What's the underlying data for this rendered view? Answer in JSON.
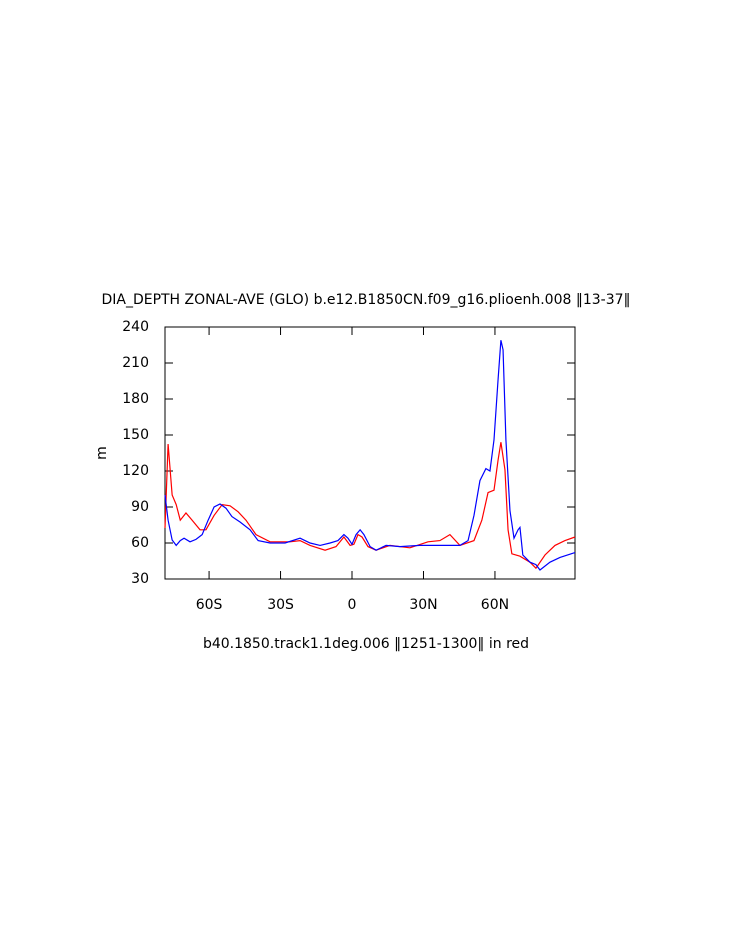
{
  "chart_data": {
    "type": "line",
    "title": "DIA_DEPTH ZONAL-AVE (GLO) b.e12.B1850CN.f09_g16.plioenh.008 ‖13-37‖",
    "subtitle": "b40.1850.track1.1deg.006 ‖1251-1300‖ in red",
    "ylabel": "m",
    "xlim": [
      -78.5,
      93.6
    ],
    "ylim": [
      30,
      240
    ],
    "xticks": [
      {
        "value": -60,
        "label": "60S"
      },
      {
        "value": -30,
        "label": "30S"
      },
      0,
      {
        "value": 30,
        "label": "30N"
      },
      {
        "value": 60,
        "label": "60N"
      }
    ],
    "yticks": [
      30,
      60,
      90,
      120,
      150,
      180,
      210,
      240
    ],
    "series": [
      {
        "color": "#0000ff",
        "x": [
          -78.5,
          -77.2,
          -75.5,
          -73.8,
          -72.1,
          -70.5,
          -68,
          -65.5,
          -62.9,
          -60.4,
          -57.9,
          -55.4,
          -52.9,
          -50.4,
          -47,
          -42.8,
          -39.4,
          -34.4,
          -28.1,
          -21.8,
          -17.6,
          -13.4,
          -9.2,
          -5.9,
          -3.4,
          -1.7,
          0,
          1.7,
          3.4,
          5,
          7.6,
          10.1,
          14.3,
          20.1,
          28.5,
          36.9,
          45.3,
          48.7,
          51.2,
          53.7,
          56.2,
          57.9,
          59.6,
          61.3,
          62.5,
          63.4,
          64.6,
          66.3,
          68,
          69.7,
          70.5,
          71.7,
          74.7,
          77.2,
          78.9,
          83.1,
          87.3,
          93.6
        ],
        "values": [
          100,
          79,
          62.5,
          58,
          62,
          64,
          61,
          63,
          67,
          79,
          90,
          92.5,
          89,
          82,
          77.5,
          71,
          62,
          60,
          60,
          64,
          60,
          58,
          60,
          62,
          67,
          64,
          59,
          67,
          71,
          67,
          57,
          54,
          58,
          57,
          58,
          58,
          58,
          62,
          83,
          112,
          122,
          120,
          146,
          196,
          229,
          221,
          146,
          87,
          64,
          71,
          73,
          50,
          44,
          42,
          37.5,
          44,
          48,
          52
        ]
      },
      {
        "color": "#ff0000",
        "x": [
          -78.5,
          -77.2,
          -75.5,
          -73.8,
          -72.1,
          -69.7,
          -67.1,
          -63.8,
          -61.3,
          -57.9,
          -54.5,
          -51.2,
          -47.8,
          -44.5,
          -40.3,
          -34.4,
          -26,
          -21.8,
          -17.6,
          -11.3,
          -6.7,
          -3.4,
          -0.8,
          0.8,
          2.5,
          4.2,
          6.7,
          10.1,
          15.9,
          24.3,
          31.9,
          36.9,
          41.1,
          45.3,
          51.2,
          54.5,
          57.1,
          59.6,
          61.3,
          62.5,
          64.2,
          65.5,
          67.1,
          70.5,
          74.7,
          77.2,
          81,
          85.2,
          89.4,
          93.6
        ],
        "values": [
          72.5,
          142.5,
          100,
          92,
          79,
          85,
          79,
          71,
          71,
          83,
          92,
          91,
          86,
          79,
          67,
          61,
          61,
          62,
          58,
          54,
          57,
          65,
          58,
          59,
          67,
          65,
          57,
          54,
          58,
          56,
          61,
          62,
          67,
          58,
          62,
          79,
          102,
          104,
          129,
          144,
          121,
          71,
          51,
          49,
          44,
          39,
          50,
          58,
          62,
          65
        ]
      }
    ]
  }
}
